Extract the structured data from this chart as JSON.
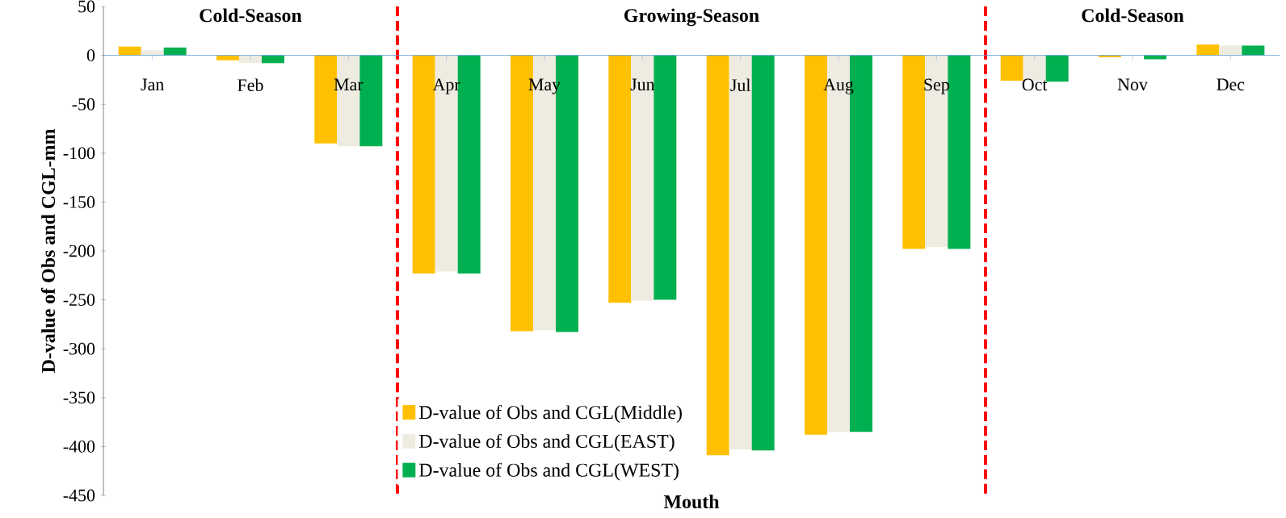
{
  "chart_data": {
    "type": "bar",
    "xlabel": "Mouth",
    "ylabel": "D-value of Obs and CGL-mm",
    "categories": [
      "Jan",
      "Feb",
      "Mar",
      "Apr",
      "May",
      "Jun",
      "Jul",
      "Aug",
      "Sep",
      "Oct",
      "Nov",
      "Dec"
    ],
    "series": [
      {
        "name": "D-value of Obs and CGL(Middle)",
        "color": "#ffc000",
        "values": [
          9,
          -5,
          -90,
          -223,
          -282,
          -253,
          -409,
          -388,
          -198,
          -26,
          -2,
          11
        ]
      },
      {
        "name": "D-value of Obs and CGL(EAST)",
        "color": "#eeece1",
        "values": [
          5,
          -8,
          -93,
          -221,
          -281,
          -251,
          -403,
          -385,
          -196,
          -26,
          null,
          10
        ]
      },
      {
        "name": "D-value of Obs and CGL(WEST)",
        "color": "#00b050",
        "values": [
          8,
          -8,
          -93,
          -223,
          -283,
          -250,
          -404,
          -385,
          -198,
          -27,
          -4,
          10
        ]
      }
    ],
    "ylim": [
      -450,
      50
    ],
    "yticks": [
      -450,
      -400,
      -350,
      -300,
      -250,
      -200,
      -150,
      -100,
      -50,
      0,
      50
    ],
    "annotations": [
      "Cold-Season",
      "Growing-Season",
      "Cold-Season"
    ],
    "legend": "bottom left",
    "grid": false
  }
}
